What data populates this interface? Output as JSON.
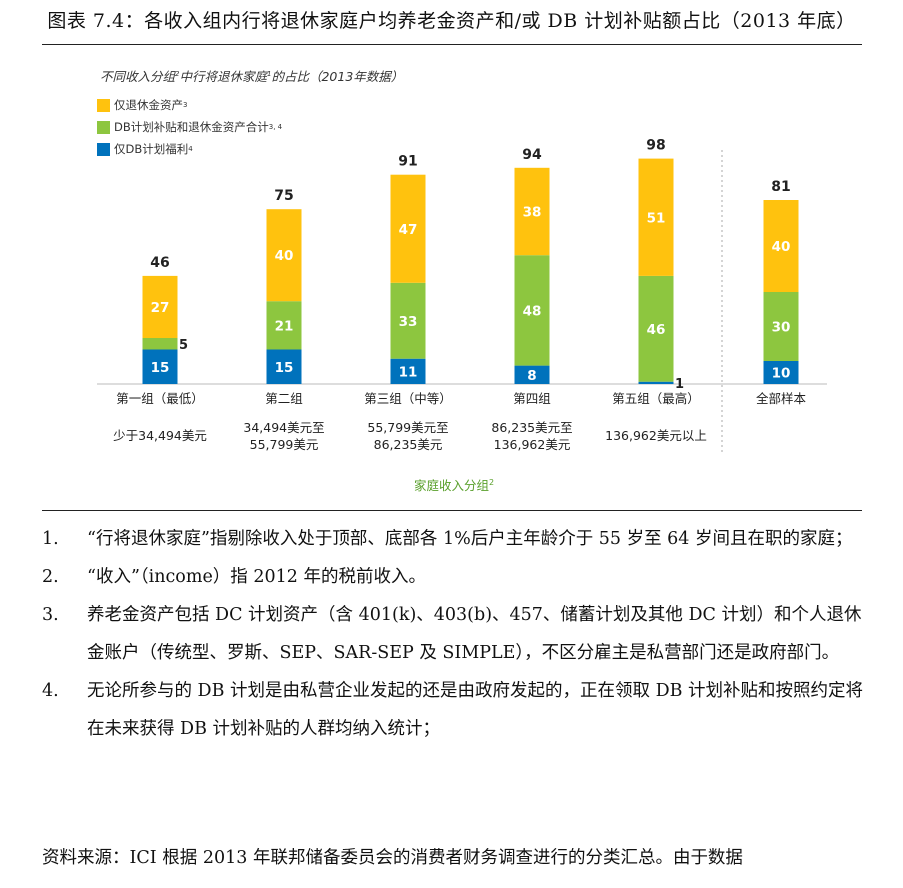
{
  "title": "图表 7.4：各收入组内行将退休家庭户均养老金资产和/或 DB 计划补贴额占比（2013 年底）",
  "chart_data": {
    "type": "bar",
    "stacked": true,
    "subtitle": "不同收入分组",
    "subtitle_sup1": "2",
    "subtitle_mid": "中行将退休家庭",
    "subtitle_sup2": "1",
    "subtitle_end": "的占比（2013年数据）",
    "categories": [
      "第一组（最低）",
      "第二组",
      "第三组（中等）",
      "第四组",
      "第五组（最高）",
      "全部样本"
    ],
    "income_ranges": [
      [
        "少于34,494美元"
      ],
      [
        "34,494美元至",
        "55,799美元"
      ],
      [
        "55,799美元至",
        "86,235美元"
      ],
      [
        "86,235美元至",
        "136,962美元"
      ],
      [
        "136,962美元以上"
      ],
      []
    ],
    "series": [
      {
        "name": "仅DB计划福利",
        "sup": "4",
        "color": "#0072bc",
        "values": [
          15,
          15,
          11,
          8,
          1,
          10
        ]
      },
      {
        "name": "DB计划补贴和退休金资产合计",
        "sup": "3, 4",
        "color": "#8dc63f",
        "values": [
          5,
          21,
          33,
          48,
          46,
          30
        ]
      },
      {
        "name": "仅退休金资产",
        "sup": "3",
        "color": "#ffc20e",
        "values": [
          27,
          40,
          47,
          38,
          51,
          40
        ]
      }
    ],
    "totals": [
      46,
      75,
      91,
      94,
      98,
      81
    ],
    "xlabel": "家庭收入分组",
    "xlabel_sup": "2",
    "ylim": [
      0,
      100
    ],
    "grid": false,
    "legend_position": "top-left"
  },
  "notes": [
    {
      "num": "1.",
      "text": "“行将退休家庭”指剔除收入处于顶部、底部各 1%后户主年龄介于 55 岁至 64 岁间且在职的家庭；"
    },
    {
      "num": "2.",
      "text": "“收入”（income）指 2012 年的税前收入。"
    },
    {
      "num": "3.",
      "text": "养老金资产包括 DC 计划资产（含 401(k)、403(b)、457、储蓄计划及其他 DC 计划）和个人退休金账户（传统型、罗斯、SEP、SAR-SEP 及 SIMPLE），不区分雇主是私营部门还是政府部门。"
    },
    {
      "num": "4.",
      "text": "无论所参与的 DB 计划是由私营企业发起的还是由政府发起的，正在领取 DB 计划补贴和按照约定将在未来获得 DB 计划补贴的人群均纳入统计；"
    }
  ],
  "source": "资料来源：ICI 根据 2013 年联邦储备委员会的消费者财务调查进行的分类汇总。由于数据"
}
